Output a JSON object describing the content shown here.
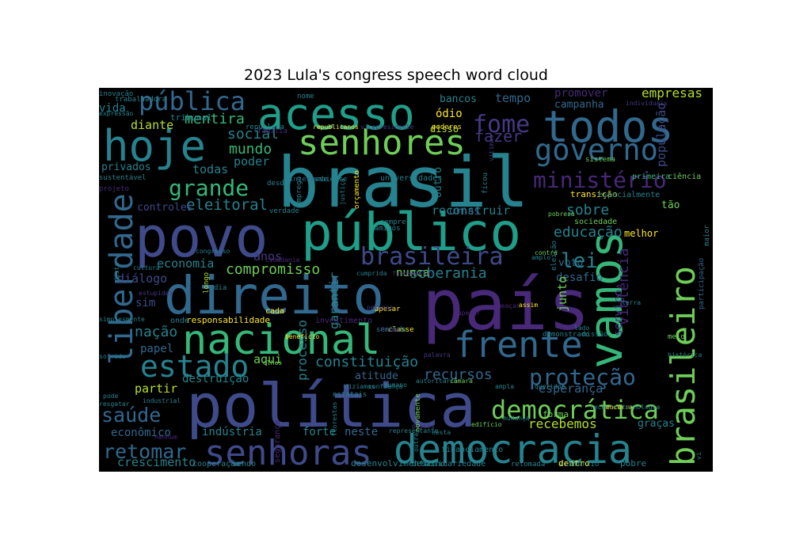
{
  "title": "2023 Lula's congress speech word cloud",
  "words": [
    {
      "text": "brasil",
      "color": "#26828e"
    },
    {
      "text": "país",
      "color": "#482878"
    },
    {
      "text": "povo",
      "color": "#3e4a89"
    },
    {
      "text": "público",
      "color": "#1f9e89"
    },
    {
      "text": "vamos",
      "color": "#35b779"
    },
    {
      "text": "direito",
      "color": "#31688e"
    },
    {
      "text": "política",
      "color": "#3e4a89"
    },
    {
      "text": "hoje",
      "color": "#26828e"
    },
    {
      "text": "acesso",
      "color": "#1f9e89"
    },
    {
      "text": "todos",
      "color": "#31688e"
    },
    {
      "text": "nacional",
      "color": "#35b779"
    },
    {
      "text": "democracia",
      "color": "#26828e"
    },
    {
      "text": "liberdade",
      "color": "#31688e"
    },
    {
      "text": "brasileiro",
      "color": "#6ece58"
    },
    {
      "text": "frente",
      "color": "#31688e"
    },
    {
      "text": "senhoras",
      "color": "#3e4a89"
    },
    {
      "text": "senhores",
      "color": "#6ece58"
    },
    {
      "text": "governo",
      "color": "#31688e"
    },
    {
      "text": "estado",
      "color": "#26828e"
    },
    {
      "text": "fome",
      "color": "#443983"
    },
    {
      "text": "democrática",
      "color": "#6ece58"
    },
    {
      "text": "ministério",
      "color": "#482878"
    },
    {
      "text": "brasileira",
      "color": "#3e4a89"
    },
    {
      "text": "pública",
      "color": "#31688e"
    },
    {
      "text": "grande",
      "color": "#35b779"
    },
    {
      "text": "proteção",
      "color": "#31688e"
    },
    {
      "text": "saúde",
      "color": "#31688e"
    },
    {
      "text": "retomar",
      "color": "#31688e"
    },
    {
      "text": "lei",
      "color": "#26828e"
    },
    {
      "text": "eleitoral",
      "color": "#26828e"
    },
    {
      "text": "compromisso",
      "color": "#6ece58"
    },
    {
      "text": "constituição",
      "color": "#26828e"
    },
    {
      "text": "recursos",
      "color": "#31688e"
    },
    {
      "text": "soberania",
      "color": "#26828e"
    },
    {
      "text": "educação",
      "color": "#26828e"
    },
    {
      "text": "sobre",
      "color": "#26828e"
    },
    {
      "text": "reconstruir",
      "color": "#26828e"
    },
    {
      "text": "fazer",
      "color": "#443983"
    },
    {
      "text": "mentira",
      "color": "#35b779"
    },
    {
      "text": "social",
      "color": "#26828e"
    },
    {
      "text": "mundo",
      "color": "#35b779"
    },
    {
      "text": "economia",
      "color": "#26828e"
    },
    {
      "text": "diálogo",
      "color": "#3e4a89"
    },
    {
      "text": "anos",
      "color": "#443983"
    },
    {
      "text": "nação",
      "color": "#26828e"
    },
    {
      "text": "esperança",
      "color": "#31688e"
    },
    {
      "text": "partir",
      "color": "#b5de2b"
    },
    {
      "text": "aqui",
      "color": "#6ece58"
    },
    {
      "text": "empresas",
      "color": "#b5de2b"
    },
    {
      "text": "população",
      "color": "#3e4a89"
    },
    {
      "text": "violência",
      "color": "#482878"
    },
    {
      "text": "recebemos",
      "color": "#b5de2b"
    },
    {
      "text": "indústria",
      "color": "#26828e"
    },
    {
      "text": "crescimento",
      "color": "#26828e"
    },
    {
      "text": "desafio",
      "color": "#31688e"
    },
    {
      "text": "forte",
      "color": "#26828e"
    },
    {
      "text": "neste",
      "color": "#31688e"
    },
    {
      "text": "econômico",
      "color": "#31688e"
    },
    {
      "text": "destruição",
      "color": "#26828e"
    },
    {
      "text": "atitude",
      "color": "#31688e"
    },
    {
      "text": "processo",
      "color": "#26828e"
    },
    {
      "text": "garantir",
      "color": "#26828e"
    },
    {
      "text": "nunca",
      "color": "#6ece58"
    },
    {
      "text": "papel",
      "color": "#31688e"
    },
    {
      "text": "diante",
      "color": "#b5de2b"
    },
    {
      "text": "vida",
      "color": "#26828e"
    },
    {
      "text": "todas",
      "color": "#26828e"
    },
    {
      "text": "poder",
      "color": "#26828e"
    },
    {
      "text": "tempo",
      "color": "#31688e"
    },
    {
      "text": "bancos",
      "color": "#26828e"
    },
    {
      "text": "promover",
      "color": "#482878"
    },
    {
      "text": "campanha",
      "color": "#31688e"
    },
    {
      "text": "ódio",
      "color": "#fde725"
    },
    {
      "text": "tão",
      "color": "#6ece58"
    },
    {
      "text": "sim",
      "color": "#3e4a89"
    },
    {
      "text": "serviço",
      "color": "#443983"
    },
    {
      "text": "privados",
      "color": "#26828e"
    },
    {
      "text": "controles",
      "color": "#3e4a89"
    },
    {
      "text": "urnas",
      "color": "#31688e"
    },
    {
      "text": "junto",
      "color": "#6ece58"
    },
    {
      "text": "voto",
      "color": "#31688e"
    },
    {
      "text": "melhor",
      "color": "#fde725"
    },
    {
      "text": "transição",
      "color": "#fde725"
    },
    {
      "text": "especialmente",
      "color": "#26828e"
    },
    {
      "text": "ciência",
      "color": "#6ece58"
    },
    {
      "text": "primeira",
      "color": "#35b779"
    },
    {
      "text": "graças",
      "color": "#26828e"
    },
    {
      "text": "forma",
      "color": "#6ece58"
    },
    {
      "text": "pobre",
      "color": "#26828e"
    },
    {
      "text": "vez",
      "color": "#26828e"
    },
    {
      "text": "dentro",
      "color": "#fde725"
    },
    {
      "text": "sociedade",
      "color": "#6ece58"
    },
    {
      "text": "universidades",
      "color": "#26828e"
    },
    {
      "text": "disso",
      "color": "#b5de2b"
    },
    {
      "text": "outro",
      "color": "#26828e"
    },
    {
      "text": "financiamento",
      "color": "#26828e"
    },
    {
      "text": "desenvolvimento",
      "color": "#26828e"
    },
    {
      "text": "solidariedade",
      "color": "#26828e"
    },
    {
      "text": "cooperação",
      "color": "#26828e"
    },
    {
      "text": "segurança",
      "color": "#482878"
    },
    {
      "text": "sendo",
      "color": "#26828e"
    },
    {
      "text": "destino",
      "color": "#26828e"
    },
    {
      "text": "retomada",
      "color": "#26828e"
    },
    {
      "text": "comércio",
      "color": "#26828e"
    },
    {
      "text": "cada",
      "color": "#fde725"
    },
    {
      "text": "responsabilidade",
      "color": "#fde725"
    },
    {
      "text": "onde",
      "color": "#26828e"
    },
    {
      "text": "investimento",
      "color": "#482878"
    },
    {
      "text": "apesar",
      "color": "#fde725"
    },
    {
      "text": "classe",
      "color": "#fde725"
    },
    {
      "text": "sentido",
      "color": "#26828e"
    },
    {
      "text": "demonstrado",
      "color": "#26828e"
    },
    {
      "text": "missão",
      "color": "#26828e"
    },
    {
      "text": "meio",
      "color": "#6ece58"
    },
    {
      "text": "histórica",
      "color": "#26828e"
    },
    {
      "text": "participação",
      "color": "#31688e"
    },
    {
      "text": "tribunal",
      "color": "#26828e"
    },
    {
      "text": "república",
      "color": "#26828e"
    },
    {
      "text": "republicanos",
      "color": "#fde725"
    },
    {
      "text": "vicepresidente",
      "color": "#443983"
    },
    {
      "text": "poderes",
      "color": "#fde725"
    },
    {
      "text": "família",
      "color": "#482878"
    },
    {
      "text": "trabalhadora",
      "color": "#26828e"
    },
    {
      "text": "expressão",
      "color": "#26828e"
    },
    {
      "text": "inovação",
      "color": "#26828e"
    },
    {
      "text": "nome",
      "color": "#26828e"
    },
    {
      "text": "individuais",
      "color": "#443983"
    },
    {
      "text": "interesse",
      "color": "#31688e"
    },
    {
      "text": "ambiente",
      "color": "#26828e"
    },
    {
      "text": "desde",
      "color": "#26828e"
    },
    {
      "text": "emprego",
      "color": "#26828e"
    },
    {
      "text": "verdade",
      "color": "#26828e"
    },
    {
      "text": "orçamento",
      "color": "#fde725"
    },
    {
      "text": "amigos",
      "color": "#26828e"
    },
    {
      "text": "sempre",
      "color": "#26828e"
    },
    {
      "text": "cidadania",
      "color": "#482878"
    },
    {
      "text": "cumprida",
      "color": "#26828e"
    },
    {
      "text": "fundamental",
      "color": "#482878"
    },
    {
      "text": "amplo",
      "color": "#26828e"
    },
    {
      "text": "contra",
      "color": "#6ece58"
    },
    {
      "text": "pobreza",
      "color": "#6ece58"
    },
    {
      "text": "eleição",
      "color": "#26828e"
    },
    {
      "text": "ficou",
      "color": "#26828e"
    },
    {
      "text": "vítimas",
      "color": "#443983"
    },
    {
      "text": "sistema",
      "color": "#6ece58"
    },
    {
      "text": "estupidez",
      "color": "#443983"
    },
    {
      "text": "cultura",
      "color": "#26828e"
    },
    {
      "text": "longo",
      "color": "#b5de2b"
    },
    {
      "text": "dia",
      "color": "#26828e"
    },
    {
      "text": "benefício",
      "color": "#fde725"
    },
    {
      "text": "olhos",
      "color": "#6ece58"
    },
    {
      "text": "estatais",
      "color": "#26828e"
    },
    {
      "text": "autoritário",
      "color": "#26828e"
    },
    {
      "text": "câmara",
      "color": "#6ece58"
    },
    {
      "text": "dizíamos",
      "color": "#26828e"
    },
    {
      "text": "ampla",
      "color": "#26828e"
    },
    {
      "text": "humano",
      "color": "#26828e"
    },
    {
      "text": "queridos",
      "color": "#26828e"
    },
    {
      "text": "passes",
      "color": "#443983"
    },
    {
      "text": "novamente",
      "color": "#6ece58"
    },
    {
      "text": "edifício",
      "color": "#6ece58"
    },
    {
      "text": "nesta",
      "color": "#26828e"
    },
    {
      "text": "confiança",
      "color": "#26828e"
    },
    {
      "text": "mudança",
      "color": "#26828e"
    },
    {
      "text": "recentes",
      "color": "#26828e"
    },
    {
      "text": "encerra",
      "color": "#fde725"
    },
    {
      "text": "tecnologia",
      "color": "#26828e"
    },
    {
      "text": "sofrido",
      "color": "#26828e"
    },
    {
      "text": "pode",
      "color": "#26828e"
    },
    {
      "text": "industrial",
      "color": "#26828e"
    },
    {
      "text": "resgatar",
      "color": "#26828e"
    },
    {
      "text": "nenhum",
      "color": "#482878"
    },
    {
      "text": "sustentável",
      "color": "#26828e"
    },
    {
      "text": "projeto",
      "color": "#482878"
    },
    {
      "text": "desta",
      "color": "#26828e"
    },
    {
      "text": "congresso",
      "color": "#26828e"
    },
    {
      "text": "simplesmente",
      "color": "#26828e"
    },
    {
      "text": "outra",
      "color": "#26828e"
    },
    {
      "text": "florestas",
      "color": "#26828e"
    },
    {
      "text": "representante",
      "color": "#26828e"
    },
    {
      "text": "maior",
      "color": "#26828e"
    },
    {
      "text": "vi",
      "color": "#26828e"
    },
    {
      "text": "terra",
      "color": "#26828e"
    },
    {
      "text": "superar",
      "color": "#482878"
    },
    {
      "text": "assim",
      "color": "#fde725"
    },
    {
      "text": "palavra",
      "color": "#443983"
    },
    {
      "text": "lado",
      "color": "#26828e"
    },
    {
      "text": "justiça",
      "color": "#26828e"
    },
    {
      "text": "pessoas",
      "color": "#443983"
    },
    {
      "text": "ameaças",
      "color": "#482878"
    },
    {
      "text": "fundo",
      "color": "#482878"
    }
  ]
}
